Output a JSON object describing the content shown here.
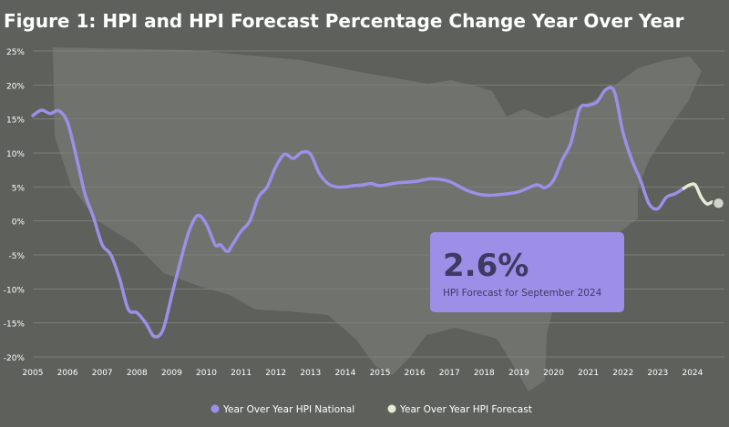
{
  "title": "Figure 1: HPI and HPI Forecast Percentage Change Year Over Year",
  "colors": {
    "background": "#5d605b",
    "map_silhouette": "#6f726d",
    "grid": "#7d807a",
    "text": "#ffffff",
    "national": "#9d8fe8",
    "forecast": "#e4ecd6",
    "callout_bg": "#9d8fe8",
    "callout_text": "#3f3a63"
  },
  "callout": {
    "value": "2.6%",
    "label": "HPI Forecast for September 2024"
  },
  "legend": [
    {
      "label": "Year Over Year HPI National",
      "color": "#9d8fe8"
    },
    {
      "label": "Year Over Year HPI Forecast",
      "color": "#e4ecd6"
    }
  ],
  "chart_data": {
    "type": "line",
    "title": "Figure 1: HPI and HPI Forecast Percentage Change Year Over Year",
    "xlabel": "",
    "ylabel": "",
    "xlim": [
      2005,
      2024.92
    ],
    "ylim": [
      -20,
      25
    ],
    "x_ticks": [
      2005,
      2006,
      2007,
      2008,
      2009,
      2010,
      2011,
      2012,
      2013,
      2014,
      2015,
      2016,
      2017,
      2018,
      2019,
      2020,
      2021,
      2022,
      2023,
      2024
    ],
    "y_ticks": [
      -20,
      -15,
      -10,
      -5,
      0,
      5,
      10,
      15,
      20,
      25
    ],
    "y_tick_labels": [
      "-20%",
      "-15%",
      "-10%",
      "-5%",
      "0%",
      "5%",
      "10%",
      "15%",
      "20%",
      "25%"
    ],
    "grid": true,
    "legend_position": "bottom-center",
    "series": [
      {
        "name": "Year Over Year HPI National",
        "color": "#9d8fe8",
        "x": [
          2005.0,
          2005.25,
          2005.5,
          2005.75,
          2006.0,
          2006.25,
          2006.5,
          2006.75,
          2007.0,
          2007.25,
          2007.5,
          2007.75,
          2008.0,
          2008.25,
          2008.5,
          2008.75,
          2009.0,
          2009.25,
          2009.5,
          2009.75,
          2010.0,
          2010.25,
          2010.4,
          2010.6,
          2010.75,
          2011.0,
          2011.25,
          2011.5,
          2011.75,
          2012.0,
          2012.25,
          2012.5,
          2012.75,
          2013.0,
          2013.25,
          2013.5,
          2013.75,
          2014.0,
          2014.25,
          2014.5,
          2014.75,
          2015.0,
          2015.5,
          2016.0,
          2016.5,
          2017.0,
          2017.5,
          2018.0,
          2018.5,
          2019.0,
          2019.5,
          2019.75,
          2020.0,
          2020.25,
          2020.5,
          2020.75,
          2021.0,
          2021.25,
          2021.5,
          2021.75,
          2022.0,
          2022.25,
          2022.5,
          2022.75,
          2023.0,
          2023.25,
          2023.5,
          2023.75
        ],
        "values": [
          15.5,
          16.3,
          15.8,
          16.2,
          14.5,
          9.5,
          4.0,
          0.5,
          -3.5,
          -5.0,
          -8.5,
          -13.0,
          -13.5,
          -15.0,
          -17.0,
          -16.0,
          -11.0,
          -6.0,
          -1.5,
          0.8,
          -0.5,
          -3.5,
          -3.5,
          -4.5,
          -3.5,
          -1.5,
          0.0,
          3.5,
          5.0,
          8.0,
          9.8,
          9.2,
          10.1,
          9.8,
          7.0,
          5.5,
          5.0,
          5.0,
          5.2,
          5.3,
          5.5,
          5.2,
          5.6,
          5.8,
          6.2,
          5.8,
          4.5,
          3.8,
          3.9,
          4.3,
          5.3,
          4.9,
          6.0,
          9.0,
          11.5,
          16.5,
          17.0,
          17.5,
          19.3,
          19.0,
          13.0,
          9.0,
          6.0,
          2.5,
          1.8,
          3.5,
          4.0,
          4.8
        ]
      },
      {
        "name": "Year Over Year HPI Forecast",
        "color": "#e4ecd6",
        "x": [
          2023.75,
          2023.92,
          2024.08,
          2024.25,
          2024.42,
          2024.58,
          2024.75
        ],
        "values": [
          4.8,
          5.3,
          5.3,
          3.5,
          2.5,
          2.8,
          2.6
        ]
      }
    ]
  }
}
